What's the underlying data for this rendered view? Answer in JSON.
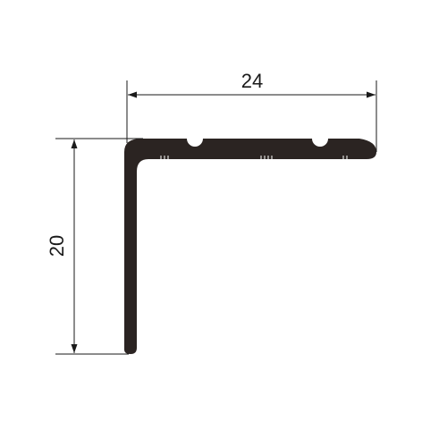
{
  "profile": {
    "fill_color": "#2b2422",
    "line_color": "#1a1a1a"
  },
  "dimensions": {
    "width_label": "24",
    "height_label": "20"
  }
}
